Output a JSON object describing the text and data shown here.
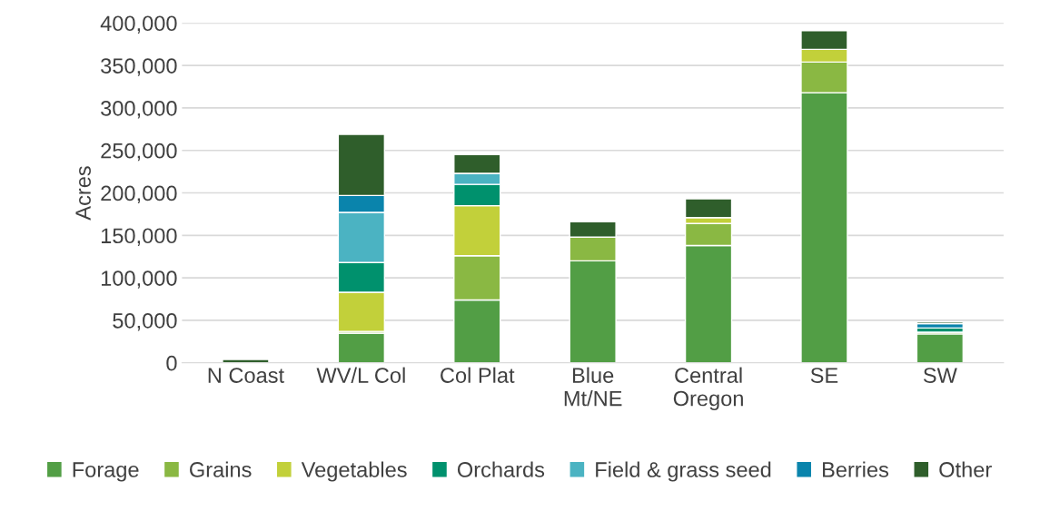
{
  "chart_data": {
    "type": "bar",
    "stacked": true,
    "ylabel": "Acres",
    "categories": [
      "N Coast",
      "WV/L Col",
      "Col Plat",
      "Blue\nMt/NE",
      "Central\nOregon",
      "SE",
      "SW"
    ],
    "series": [
      {
        "name": "Forage",
        "color": "#529e45",
        "values": [
          0,
          35000,
          74000,
          120000,
          138000,
          318000,
          34000
        ]
      },
      {
        "name": "Grains",
        "color": "#8ab843",
        "values": [
          0,
          2000,
          52000,
          28000,
          26000,
          36000,
          2000
        ]
      },
      {
        "name": "Vegetables",
        "color": "#c2d03a",
        "values": [
          0,
          46000,
          59000,
          0,
          7000,
          15000,
          0
        ]
      },
      {
        "name": "Orchards",
        "color": "#00916d",
        "values": [
          0,
          35000,
          25000,
          0,
          0,
          0,
          5000
        ]
      },
      {
        "name": "Field & grass seed",
        "color": "#4bb3c2",
        "values": [
          0,
          59000,
          13000,
          0,
          0,
          0,
          0
        ]
      },
      {
        "name": "Berries",
        "color": "#0a84ac",
        "values": [
          0,
          20000,
          0,
          0,
          0,
          0,
          5000
        ]
      },
      {
        "name": "Other",
        "color": "#2f5e2b",
        "values": [
          4000,
          72000,
          22000,
          18000,
          22000,
          22000,
          2000
        ]
      }
    ],
    "ylim": [
      0,
      400000
    ],
    "yticks": [
      {
        "value": 0,
        "label": "0"
      },
      {
        "value": 50000,
        "label": "50,000"
      },
      {
        "value": 100000,
        "label": "100,000"
      },
      {
        "value": 150000,
        "label": "150,000"
      },
      {
        "value": 200000,
        "label": "200,000"
      },
      {
        "value": 250000,
        "label": "250,000"
      },
      {
        "value": 300000,
        "label": "300,000"
      },
      {
        "value": 350000,
        "label": "350,000"
      },
      {
        "value": 400000,
        "label": "400,000"
      }
    ],
    "grid": "y",
    "legend": "bottom"
  }
}
